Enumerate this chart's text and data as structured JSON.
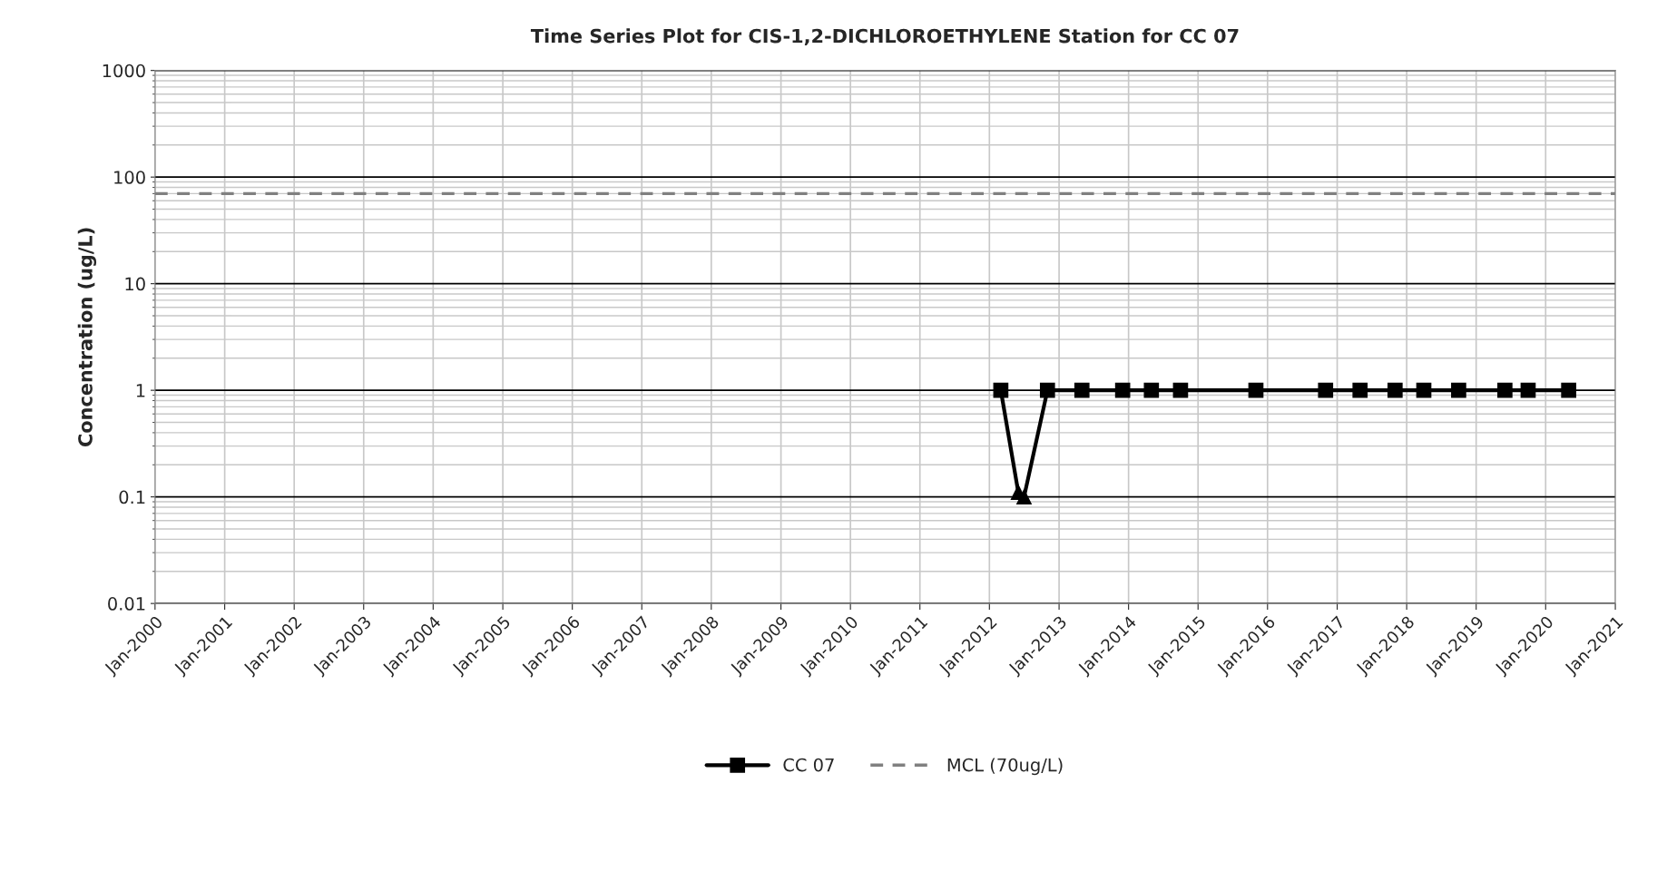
{
  "chart_data": {
    "type": "line",
    "title": "Time Series Plot for CIS-1,2-DICHLOROETHYLENE Station for CC 07",
    "ylabel": "Concentration (ug/L)",
    "series": [
      {
        "name": "CC 07",
        "color": "#000000",
        "marker": "none",
        "x": [
          "2012-03",
          "2012-06",
          "2012-07",
          "2012-11",
          "2013-05",
          "2013-12",
          "2014-05",
          "2014-10",
          "2015-11",
          "2016-11",
          "2017-05",
          "2017-11",
          "2018-04",
          "2018-10",
          "2019-06",
          "2019-10",
          "2020-05"
        ],
        "values": [
          1,
          0.11,
          0.1,
          1,
          1,
          1,
          1,
          1,
          1,
          1,
          1,
          1,
          1,
          1,
          1,
          1,
          1
        ]
      },
      {
        "type": "scatter",
        "color": "#000000",
        "marker": "square",
        "x": [
          "2012-03",
          "2012-11",
          "2013-05",
          "2013-12",
          "2014-05",
          "2014-10",
          "2015-11",
          "2016-11",
          "2017-05",
          "2017-11",
          "2018-04",
          "2018-10",
          "2019-06",
          "2019-10",
          "2020-05"
        ],
        "values": [
          1,
          1,
          1,
          1,
          1,
          1,
          1,
          1,
          1,
          1,
          1,
          1,
          1,
          1,
          1
        ]
      },
      {
        "type": "scatter",
        "color": "#000000",
        "marker": "triangle",
        "x": [
          "2012-06",
          "2012-07"
        ],
        "values": [
          0.11,
          0.1
        ]
      }
    ],
    "ref_lines": [
      {
        "axis": "y",
        "value": 70,
        "label": "MCL (70ug/L)",
        "color": "#808080",
        "line_style": "dashed"
      }
    ],
    "log": "y",
    "ylim": [
      0.01,
      1000
    ],
    "yticks": [
      0.01,
      0.1,
      1,
      10,
      100,
      1000
    ],
    "xlim": [
      "2000-01",
      "2021-01"
    ],
    "xticks": [
      {
        "value": "2000-01",
        "label": "Jan-2000"
      },
      {
        "value": "2001-01",
        "label": "Jan-2001"
      },
      {
        "value": "2002-01",
        "label": "Jan-2002"
      },
      {
        "value": "2003-01",
        "label": "Jan-2003"
      },
      {
        "value": "2004-01",
        "label": "Jan-2004"
      },
      {
        "value": "2005-01",
        "label": "Jan-2005"
      },
      {
        "value": "2006-01",
        "label": "Jan-2006"
      },
      {
        "value": "2007-01",
        "label": "Jan-2007"
      },
      {
        "value": "2008-01",
        "label": "Jan-2008"
      },
      {
        "value": "2009-01",
        "label": "Jan-2009"
      },
      {
        "value": "2010-01",
        "label": "Jan-2010"
      },
      {
        "value": "2011-01",
        "label": "Jan-2011"
      },
      {
        "value": "2012-01",
        "label": "Jan-2012"
      },
      {
        "value": "2013-01",
        "label": "Jan-2013"
      },
      {
        "value": "2014-01",
        "label": "Jan-2014"
      },
      {
        "value": "2015-01",
        "label": "Jan-2015"
      },
      {
        "value": "2016-01",
        "label": "Jan-2016"
      },
      {
        "value": "2017-01",
        "label": "Jan-2017"
      },
      {
        "value": "2018-01",
        "label": "Jan-2018"
      },
      {
        "value": "2019-01",
        "label": "Jan-2019"
      },
      {
        "value": "2020-01",
        "label": "Jan-2020"
      },
      {
        "value": "2021-01",
        "label": "Jan-2021"
      }
    ],
    "grid": true,
    "legend": "bottom",
    "line_style": "solid"
  }
}
